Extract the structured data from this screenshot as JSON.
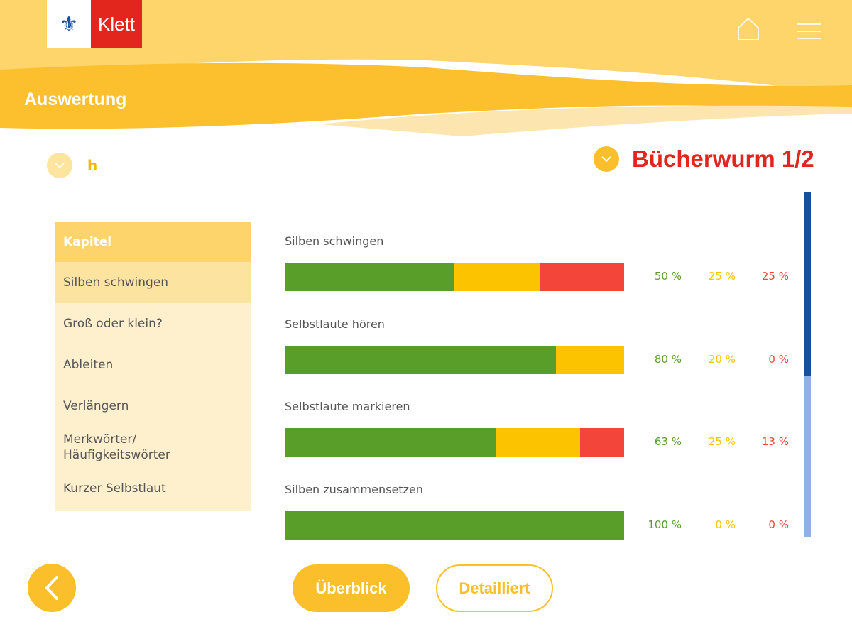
{
  "header": {
    "logo_text": "Klett",
    "title": "Auswertung",
    "home_icon": "home-icon",
    "menu_icon": "menu-icon"
  },
  "selectors": {
    "left_value": "h",
    "right_value": "Bücherwurm 1/2"
  },
  "sidebar": {
    "header": "Kapitel",
    "items": [
      {
        "label": "Silben schwingen",
        "active": true
      },
      {
        "label": "Groß oder klein?"
      },
      {
        "label": "Ableiten"
      },
      {
        "label": "Verlängern"
      },
      {
        "label": "Merkwörter/ Häufigkeitswörter"
      },
      {
        "label": "Kurzer Selbstlaut"
      }
    ]
  },
  "colors": {
    "green": "#5a9e2a",
    "yellow": "#fbc300",
    "red": "#f4453b",
    "accent": "#fbbf2b",
    "title_red": "#e3261d"
  },
  "chart_data": {
    "type": "bar",
    "stacked": true,
    "orientation": "horizontal",
    "categories": [
      "Silben schwingen",
      "Selbstlaute hören",
      "Selbstlaute markieren",
      "Silben zusammensetzen"
    ],
    "series": [
      {
        "values": [
          50,
          80,
          63,
          100
        ],
        "labels": [
          "50 %",
          "80 %",
          "63 %",
          "100 %"
        ]
      },
      {
        "values": [
          25,
          20,
          25,
          0
        ],
        "labels": [
          "25 %",
          "20 %",
          "25 %",
          "0 %"
        ]
      },
      {
        "values": [
          25,
          0,
          13,
          0
        ],
        "labels": [
          "25 %",
          "0 %",
          "13 %",
          "0 %"
        ]
      }
    ]
  },
  "scroll": {
    "position_fraction": 0.53
  },
  "footer": {
    "overview": "Überblick",
    "detailed": "Detailliert"
  }
}
